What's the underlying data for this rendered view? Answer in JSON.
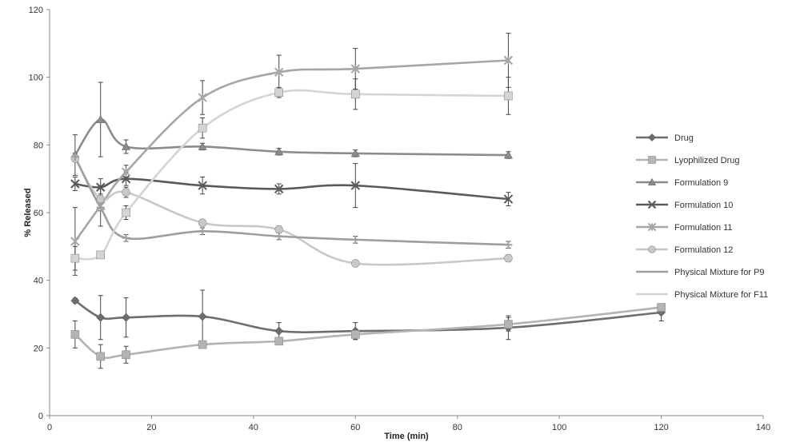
{
  "chart_data": {
    "type": "line",
    "title": "",
    "xlabel": "Time (min)",
    "ylabel": "% Released",
    "xlim": [
      0,
      140
    ],
    "ylim": [
      0,
      120
    ],
    "xticks": [
      0,
      20,
      40,
      60,
      80,
      100,
      120,
      140
    ],
    "yticks": [
      0,
      20,
      40,
      60,
      80,
      100,
      120
    ],
    "grid": false,
    "legend_position": "right",
    "series": [
      {
        "name": "Drug",
        "color": "#6e6e6e",
        "marker": "diamond",
        "x": [
          5,
          10,
          15,
          30,
          45,
          60,
          90,
          120
        ],
        "y": [
          34,
          29,
          29,
          29.3,
          25,
          25,
          26,
          30.5
        ],
        "err": [
          0.7,
          6.5,
          5.8,
          7.8,
          2.5,
          2.5,
          3.5,
          2.5
        ]
      },
      {
        "name": "Lyophilized Drug",
        "color": "#b3b3b3",
        "marker": "square",
        "x": [
          5,
          10,
          15,
          30,
          45,
          60,
          90,
          120
        ],
        "y": [
          24,
          17.5,
          18,
          21,
          22,
          24,
          27,
          32
        ],
        "err": [
          4,
          3.5,
          2.5,
          1,
          1,
          1.5,
          2,
          1
        ]
      },
      {
        "name": "Formulation 9",
        "color": "#8c8c8c",
        "marker": "triangle",
        "x": [
          5,
          10,
          15,
          30,
          45,
          60,
          90
        ],
        "y": [
          77,
          87.5,
          79.5,
          79.5,
          78,
          77.5,
          77
        ],
        "err": [
          6,
          11,
          2,
          1,
          1,
          1,
          1
        ]
      },
      {
        "name": "Formulation 10",
        "color": "#5a5a5a",
        "marker": "x",
        "x": [
          5,
          10,
          15,
          30,
          45,
          60,
          90
        ],
        "y": [
          68.5,
          67.5,
          70,
          68,
          67,
          68,
          64
        ],
        "err": [
          2,
          2.5,
          2,
          2.5,
          1.5,
          6.5,
          2
        ]
      },
      {
        "name": "Formulation 11",
        "color": "#a6a6a6",
        "marker": "star",
        "x": [
          5,
          10,
          15,
          30,
          45,
          60,
          90
        ],
        "y": [
          51.5,
          62,
          72,
          94,
          101.5,
          102.5,
          105
        ],
        "err": [
          10,
          6,
          2,
          5,
          5,
          6,
          8
        ]
      },
      {
        "name": "Formulation 12",
        "color": "#c8c8c8",
        "marker": "circle",
        "x": [
          5,
          10,
          15,
          30,
          45,
          60,
          90
        ],
        "y": [
          76,
          64,
          66,
          57,
          55,
          45,
          46.5
        ],
        "err": [
          1,
          1.5,
          1.5,
          1,
          1,
          1,
          1
        ]
      },
      {
        "name": "Physical Mixture for P9",
        "color": "#9e9e9e",
        "marker": "plus",
        "x": [
          5,
          10,
          15,
          30,
          45,
          60,
          90
        ],
        "y": [
          76.5,
          61.5,
          52.5,
          54.5,
          53,
          52,
          50.5
        ],
        "err": [
          1,
          1,
          1,
          1,
          1,
          1,
          1
        ]
      },
      {
        "name": "Physical Mixture for F11",
        "color": "#d4d4d4",
        "marker": "square",
        "x": [
          5,
          10,
          15,
          30,
          45,
          60,
          90
        ],
        "y": [
          46.5,
          47.5,
          60,
          85,
          95.5,
          95,
          94.5
        ],
        "err": [
          3.5,
          1,
          2,
          3,
          1.5,
          4.5,
          5.5
        ]
      }
    ]
  }
}
